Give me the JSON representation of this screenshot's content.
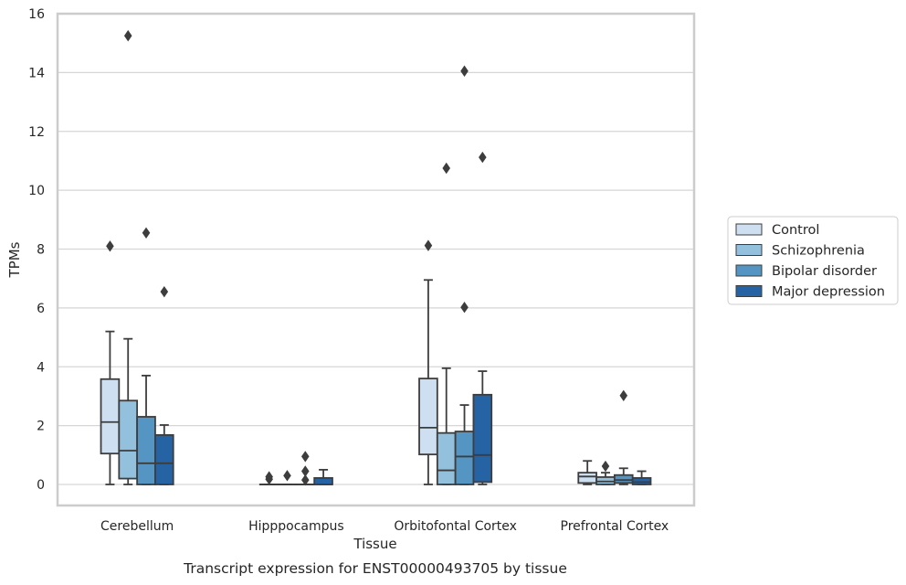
{
  "chart_data": {
    "type": "box",
    "xlabel": "Tissue",
    "ylabel": "TPMs",
    "caption": "Transcript expression for ENST00000493705 by tissue",
    "ylim": [
      -0.72,
      16
    ],
    "yticks": [
      0,
      2,
      4,
      6,
      8,
      10,
      12,
      14,
      16
    ],
    "grid": "horizontal",
    "legend_position": "right",
    "categories": [
      "Cerebellum",
      "Hipppocampus",
      "Orbitofontal Cortex",
      "Prefrontal Cortex"
    ],
    "series": [
      {
        "name": "Control",
        "color": "#cddff0",
        "boxes": [
          {
            "whisker_low": 0,
            "q1": 1.05,
            "median": 2.12,
            "q3": 3.58,
            "whisker_high": 5.2,
            "outliers": [
              8.1
            ]
          },
          {
            "whisker_low": 0,
            "q1": 0,
            "median": 0,
            "q3": 0,
            "whisker_high": 0,
            "outliers": [
              0.18,
              0.26
            ]
          },
          {
            "whisker_low": 0,
            "q1": 1.02,
            "median": 1.93,
            "q3": 3.6,
            "whisker_high": 6.95,
            "outliers": [
              8.12
            ]
          },
          {
            "whisker_low": 0,
            "q1": 0.05,
            "median": 0.27,
            "q3": 0.4,
            "whisker_high": 0.8,
            "outliers": []
          }
        ]
      },
      {
        "name": "Schizophrenia",
        "color": "#93c0dd",
        "boxes": [
          {
            "whisker_low": 0,
            "q1": 0.2,
            "median": 1.15,
            "q3": 2.85,
            "whisker_high": 4.95,
            "outliers": [
              15.25
            ]
          },
          {
            "whisker_low": 0,
            "q1": 0,
            "median": 0,
            "q3": 0,
            "whisker_high": 0,
            "outliers": [
              0.3
            ]
          },
          {
            "whisker_low": 0,
            "q1": 0,
            "median": 0.48,
            "q3": 1.75,
            "whisker_high": 3.95,
            "outliers": [
              10.75
            ]
          },
          {
            "whisker_low": 0,
            "q1": 0,
            "median": 0.1,
            "q3": 0.25,
            "whisker_high": 0.4,
            "outliers": [
              0.62
            ]
          }
        ]
      },
      {
        "name": "Bipolar disorder",
        "color": "#5595c4",
        "boxes": [
          {
            "whisker_low": 0,
            "q1": 0,
            "median": 0.72,
            "q3": 2.3,
            "whisker_high": 3.7,
            "outliers": [
              8.55
            ]
          },
          {
            "whisker_low": 0,
            "q1": 0,
            "median": 0,
            "q3": 0,
            "whisker_high": 0,
            "outliers": [
              0.15,
              0.45,
              0.95
            ]
          },
          {
            "whisker_low": 0,
            "q1": 0,
            "median": 0.95,
            "q3": 1.8,
            "whisker_high": 2.7,
            "outliers": [
              6.02,
              14.05
            ]
          },
          {
            "whisker_low": 0,
            "q1": 0.05,
            "median": 0.15,
            "q3": 0.32,
            "whisker_high": 0.55,
            "outliers": [
              3.02
            ]
          }
        ]
      },
      {
        "name": "Major depression",
        "color": "#2663a5",
        "boxes": [
          {
            "whisker_low": 0,
            "q1": 0,
            "median": 0.72,
            "q3": 1.68,
            "whisker_high": 2.02,
            "outliers": [
              6.55
            ]
          },
          {
            "whisker_low": 0,
            "q1": 0,
            "median": 0,
            "q3": 0.22,
            "whisker_high": 0.5,
            "outliers": []
          },
          {
            "whisker_low": 0,
            "q1": 0.08,
            "median": 1.0,
            "q3": 3.05,
            "whisker_high": 3.85,
            "outliers": [
              11.12
            ]
          },
          {
            "whisker_low": 0,
            "q1": 0,
            "median": 0.08,
            "q3": 0.22,
            "whisker_high": 0.45,
            "outliers": []
          }
        ]
      }
    ]
  }
}
